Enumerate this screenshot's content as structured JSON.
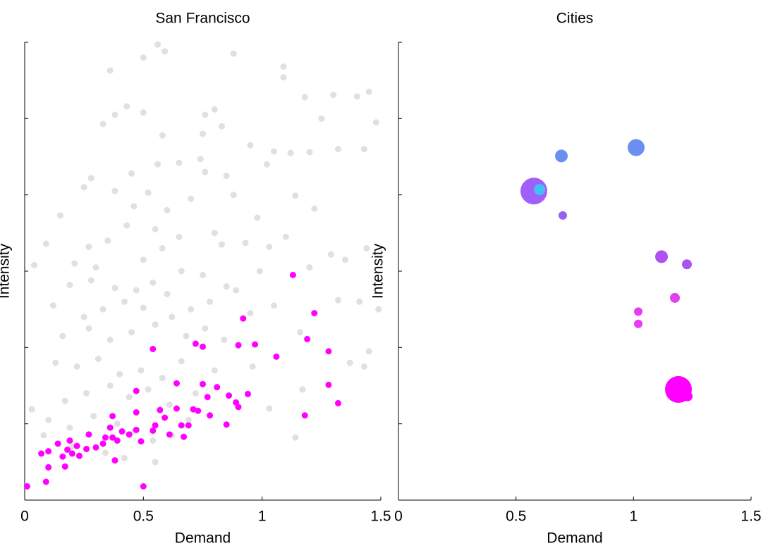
{
  "chart_data": [
    {
      "type": "scatter",
      "title": "San Francisco",
      "x_label": "Demand",
      "y_label": "Intensity",
      "xlim": [
        0,
        1.5
      ],
      "xticks": [
        0,
        0.5,
        1,
        1.5
      ],
      "ylim": [
        0,
        6
      ],
      "yticks": [
        0,
        1,
        2,
        3,
        4,
        5,
        6
      ],
      "series": [
        {
          "color": "#e0e0e0",
          "x": [
            0.5,
            0.56,
            0.59,
            0.36,
            0.88,
            1.09,
            1.09,
            1.18,
            1.3,
            1.4,
            1.45,
            1.25,
            1.48,
            0.33,
            0.38,
            0.43,
            0.5,
            0.76,
            0.8,
            0.83,
            0.75,
            0.58,
            0.95,
            1.05,
            1.12,
            1.2,
            1.32,
            1.43,
            1.02,
            0.28,
            0.45,
            0.56,
            0.65,
            0.76,
            0.74,
            0.85,
            0.38,
            0.25,
            0.52,
            0.7,
            0.88,
            1.14,
            0.46,
            0.6,
            0.98,
            1.22,
            0.15,
            0.43,
            0.55,
            0.65,
            0.8,
            1.1,
            1.03,
            0.09,
            0.27,
            0.35,
            0.58,
            0.83,
            0.93,
            1.29,
            1.44,
            0.04,
            0.21,
            0.3,
            0.5,
            0.66,
            0.75,
            0.99,
            1.2,
            1.35,
            0.19,
            0.28,
            0.38,
            0.47,
            0.54,
            0.6,
            0.85,
            0.89,
            1.41,
            1.49,
            0.12,
            0.25,
            0.33,
            0.42,
            0.5,
            0.62,
            0.7,
            0.78,
            0.95,
            1.05,
            1.32,
            0.16,
            0.27,
            0.36,
            0.45,
            0.55,
            0.68,
            0.76,
            0.84,
            1.16,
            1.45,
            0.13,
            0.22,
            0.31,
            0.4,
            0.49,
            0.58,
            0.66,
            0.8,
            0.96,
            1.37,
            1.43,
            0.17,
            0.26,
            0.36,
            0.44,
            0.52,
            0.61,
            0.72,
            1.03,
            1.17,
            0.03,
            0.1,
            0.19,
            0.29,
            0.39,
            0.46,
            0.54,
            0.62,
            0.69,
            1.14,
            0.08,
            0.2,
            0.34,
            0.42,
            0.55,
            0.01
          ],
          "y": [
            5.8,
            5.97,
            5.88,
            5.63,
            5.85,
            5.68,
            5.54,
            5.28,
            5.31,
            5.29,
            5.35,
            5.0,
            4.95,
            4.93,
            5.05,
            5.16,
            5.08,
            5.05,
            5.12,
            4.9,
            4.8,
            4.78,
            4.65,
            4.57,
            4.55,
            4.56,
            4.6,
            4.6,
            4.4,
            4.22,
            4.28,
            4.4,
            4.42,
            4.3,
            4.47,
            4.25,
            4.05,
            4.1,
            4.03,
            3.95,
            4.0,
            3.99,
            3.85,
            3.8,
            3.7,
            3.82,
            3.73,
            3.6,
            3.55,
            3.45,
            3.5,
            3.45,
            3.32,
            3.36,
            3.32,
            3.4,
            3.3,
            3.35,
            3.37,
            3.22,
            3.3,
            3.08,
            3.1,
            3.05,
            3.15,
            3.0,
            2.95,
            3.0,
            3.05,
            3.15,
            2.82,
            2.88,
            2.78,
            2.75,
            2.85,
            2.7,
            2.8,
            2.75,
            2.6,
            2.5,
            2.55,
            2.4,
            2.5,
            2.6,
            2.52,
            2.4,
            2.5,
            2.6,
            2.45,
            2.55,
            2.62,
            2.15,
            2.25,
            2.1,
            2.2,
            2.3,
            2.15,
            2.25,
            2.1,
            2.2,
            1.95,
            1.8,
            1.75,
            1.85,
            1.65,
            1.7,
            1.6,
            1.82,
            1.7,
            1.75,
            1.8,
            1.75,
            1.3,
            1.4,
            1.5,
            1.35,
            1.45,
            1.25,
            1.4,
            1.2,
            1.45,
            1.19,
            1.05,
            0.95,
            1.1,
            1.0,
            0.9,
            0.78,
            0.85,
            1.05,
            0.82,
            0.85,
            0.7,
            0.62,
            0.55,
            0.5,
            0.18
          ]
        },
        {
          "color": "#ff00ff",
          "x": [
            0.01,
            0.09,
            0.07,
            0.1,
            0.1,
            0.14,
            0.16,
            0.17,
            0.18,
            0.19,
            0.2,
            0.22,
            0.23,
            0.26,
            0.27,
            0.3,
            0.33,
            0.34,
            0.36,
            0.37,
            0.37,
            0.38,
            0.39,
            0.41,
            0.44,
            0.47,
            0.47,
            0.47,
            0.49,
            0.5,
            0.54,
            0.55,
            0.54,
            0.57,
            0.59,
            0.61,
            0.64,
            0.64,
            0.66,
            0.67,
            0.69,
            0.71,
            0.72,
            0.73,
            0.75,
            0.75,
            0.77,
            0.78,
            0.81,
            0.85,
            0.86,
            0.89,
            0.9,
            0.9,
            0.92,
            0.94,
            0.97,
            1.06,
            1.13,
            1.18,
            1.19,
            1.22,
            1.28,
            1.28,
            1.32
          ],
          "y": [
            0.18,
            0.24,
            0.61,
            0.64,
            0.43,
            0.74,
            0.57,
            0.44,
            0.66,
            0.78,
            0.61,
            0.71,
            0.58,
            0.67,
            0.86,
            0.69,
            0.74,
            0.82,
            0.95,
            1.1,
            0.82,
            0.52,
            0.78,
            0.9,
            0.86,
            0.92,
            1.15,
            1.43,
            0.77,
            0.18,
            0.91,
            0.98,
            1.98,
            1.18,
            1.08,
            0.86,
            1.2,
            1.53,
            0.98,
            0.83,
            0.98,
            1.19,
            2.05,
            1.17,
            2.01,
            1.52,
            1.35,
            1.11,
            1.48,
            0.99,
            1.37,
            1.28,
            1.22,
            2.03,
            2.38,
            1.39,
            2.04,
            1.88,
            2.95,
            1.11,
            2.11,
            2.45,
            1.95,
            1.51,
            1.27
          ]
        }
      ]
    },
    {
      "type": "bubble",
      "title": "Cities",
      "x_label": "Demand",
      "y_label": "Intensity",
      "xlim": [
        0,
        1.5
      ],
      "xticks": [
        0,
        0.5,
        1,
        1.5
      ],
      "ylim": [
        0,
        6
      ],
      "yticks": [
        0,
        1,
        2,
        3,
        4,
        5,
        6
      ],
      "series": [
        {
          "x": [
            0.693,
            1.011,
            0.576,
            0.6,
            0.699,
            1.119,
            1.227,
            1.176,
            1.02,
            1.02,
            1.191,
            1.23
          ],
          "y": [
            4.51,
            4.62,
            4.05,
            4.07,
            3.73,
            3.19,
            3.09,
            2.65,
            2.47,
            2.31,
            1.45,
            1.36
          ],
          "sizes": [
            9,
            12,
            19,
            8,
            6,
            9,
            7,
            7,
            6,
            6,
            19,
            7
          ],
          "colors": [
            "#6a8ff0",
            "#6a8ff0",
            "#a060f8",
            "#40c0f8",
            "#9a5ef4",
            "#b050f0",
            "#a855f0",
            "#e040f0",
            "#e83cf0",
            "#e83cf0",
            "#ff00ff",
            "#ff00ff"
          ]
        }
      ]
    }
  ]
}
